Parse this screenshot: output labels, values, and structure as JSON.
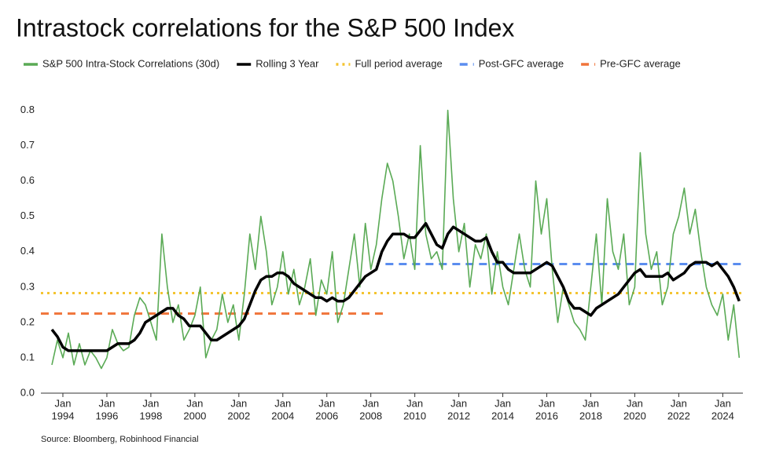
{
  "chart_data": {
    "type": "line",
    "title": "Intrastock correlations for the S&P 500 Index",
    "source": "Source: Bloomberg, Robinhood Financial",
    "x": [
      "1993-07",
      "1993-10",
      "1994-01",
      "1994-04",
      "1994-07",
      "1994-10",
      "1995-01",
      "1995-04",
      "1995-07",
      "1995-10",
      "1996-01",
      "1996-04",
      "1996-07",
      "1996-10",
      "1997-01",
      "1997-04",
      "1997-07",
      "1997-10",
      "1998-01",
      "1998-04",
      "1998-07",
      "1998-10",
      "1999-01",
      "1999-04",
      "1999-07",
      "1999-10",
      "2000-01",
      "2000-04",
      "2000-07",
      "2000-10",
      "2001-01",
      "2001-04",
      "2001-07",
      "2001-10",
      "2002-01",
      "2002-04",
      "2002-07",
      "2002-10",
      "2003-01",
      "2003-04",
      "2003-07",
      "2003-10",
      "2004-01",
      "2004-04",
      "2004-07",
      "2004-10",
      "2005-01",
      "2005-04",
      "2005-07",
      "2005-10",
      "2006-01",
      "2006-04",
      "2006-07",
      "2006-10",
      "2007-01",
      "2007-04",
      "2007-07",
      "2007-10",
      "2008-01",
      "2008-04",
      "2008-07",
      "2008-10",
      "2009-01",
      "2009-04",
      "2009-07",
      "2009-10",
      "2010-01",
      "2010-04",
      "2010-07",
      "2010-10",
      "2011-01",
      "2011-04",
      "2011-07",
      "2011-10",
      "2012-01",
      "2012-04",
      "2012-07",
      "2012-10",
      "2013-01",
      "2013-04",
      "2013-07",
      "2013-10",
      "2014-01",
      "2014-04",
      "2014-07",
      "2014-10",
      "2015-01",
      "2015-04",
      "2015-07",
      "2015-10",
      "2016-01",
      "2016-04",
      "2016-07",
      "2016-10",
      "2017-01",
      "2017-04",
      "2017-07",
      "2017-10",
      "2018-01",
      "2018-04",
      "2018-07",
      "2018-10",
      "2019-01",
      "2019-04",
      "2019-07",
      "2019-10",
      "2020-01",
      "2020-04",
      "2020-07",
      "2020-10",
      "2021-01",
      "2021-04",
      "2021-07",
      "2021-10",
      "2022-01",
      "2022-04",
      "2022-07",
      "2022-10",
      "2023-01",
      "2023-04",
      "2023-07",
      "2023-10",
      "2024-01",
      "2024-04",
      "2024-07",
      "2024-10"
    ],
    "series": [
      {
        "name": "S&P 500 Intra-Stock Correlations (30d)",
        "color": "#5aaa55",
        "width": 1.6,
        "values": [
          0.08,
          0.15,
          0.1,
          0.17,
          0.08,
          0.14,
          0.08,
          0.12,
          0.1,
          0.07,
          0.1,
          0.18,
          0.14,
          0.12,
          0.13,
          0.22,
          0.27,
          0.25,
          0.2,
          0.15,
          0.45,
          0.3,
          0.2,
          0.25,
          0.15,
          0.18,
          0.22,
          0.3,
          0.1,
          0.15,
          0.18,
          0.28,
          0.2,
          0.25,
          0.15,
          0.28,
          0.45,
          0.35,
          0.5,
          0.4,
          0.25,
          0.3,
          0.4,
          0.28,
          0.35,
          0.25,
          0.3,
          0.38,
          0.22,
          0.32,
          0.28,
          0.4,
          0.2,
          0.25,
          0.35,
          0.45,
          0.3,
          0.48,
          0.35,
          0.42,
          0.55,
          0.65,
          0.6,
          0.5,
          0.38,
          0.45,
          0.35,
          0.7,
          0.45,
          0.38,
          0.4,
          0.35,
          0.8,
          0.55,
          0.4,
          0.48,
          0.3,
          0.42,
          0.38,
          0.45,
          0.28,
          0.4,
          0.3,
          0.25,
          0.35,
          0.45,
          0.35,
          0.3,
          0.6,
          0.45,
          0.55,
          0.35,
          0.2,
          0.3,
          0.25,
          0.2,
          0.18,
          0.15,
          0.3,
          0.45,
          0.25,
          0.55,
          0.4,
          0.35,
          0.45,
          0.25,
          0.3,
          0.68,
          0.45,
          0.35,
          0.4,
          0.25,
          0.3,
          0.45,
          0.5,
          0.58,
          0.45,
          0.52,
          0.4,
          0.3,
          0.25,
          0.22,
          0.28,
          0.15,
          0.25,
          0.1
        ]
      },
      {
        "name": "Rolling 3 Year",
        "color": "#000000",
        "width": 3.5,
        "values": [
          0.18,
          0.16,
          0.13,
          0.12,
          0.12,
          0.12,
          0.12,
          0.12,
          0.12,
          0.12,
          0.12,
          0.13,
          0.14,
          0.14,
          0.14,
          0.15,
          0.17,
          0.2,
          0.21,
          0.22,
          0.23,
          0.24,
          0.24,
          0.22,
          0.21,
          0.19,
          0.19,
          0.19,
          0.17,
          0.15,
          0.15,
          0.16,
          0.17,
          0.18,
          0.19,
          0.21,
          0.25,
          0.29,
          0.32,
          0.33,
          0.33,
          0.34,
          0.34,
          0.33,
          0.31,
          0.3,
          0.29,
          0.28,
          0.27,
          0.27,
          0.26,
          0.27,
          0.26,
          0.26,
          0.27,
          0.29,
          0.31,
          0.33,
          0.34,
          0.35,
          0.4,
          0.43,
          0.45,
          0.45,
          0.45,
          0.44,
          0.44,
          0.46,
          0.48,
          0.45,
          0.42,
          0.41,
          0.45,
          0.47,
          0.46,
          0.45,
          0.44,
          0.43,
          0.43,
          0.44,
          0.4,
          0.37,
          0.37,
          0.35,
          0.34,
          0.34,
          0.34,
          0.34,
          0.35,
          0.36,
          0.37,
          0.36,
          0.33,
          0.3,
          0.26,
          0.24,
          0.24,
          0.23,
          0.22,
          0.24,
          0.25,
          0.26,
          0.27,
          0.28,
          0.3,
          0.32,
          0.34,
          0.35,
          0.33,
          0.33,
          0.33,
          0.33,
          0.34,
          0.32,
          0.33,
          0.34,
          0.36,
          0.37,
          0.37,
          0.37,
          0.36,
          0.37,
          0.35,
          0.33,
          0.3,
          0.26
        ]
      }
    ],
    "reference_lines": [
      {
        "name": "Full period average",
        "color": "#f4c430",
        "style": "dotted",
        "value": 0.283,
        "x_range": [
          "1993-01",
          "2024-12"
        ]
      },
      {
        "name": "Post-GFC average",
        "color": "#5b8def",
        "style": "dashed",
        "value": 0.365,
        "x_range": [
          "2008-09",
          "2024-12"
        ]
      },
      {
        "name": "Pre-GFC average",
        "color": "#f0743a",
        "style": "dashed",
        "value": 0.225,
        "x_range": [
          "1993-01",
          "2008-09"
        ]
      }
    ],
    "xlim": [
      "1993-01",
      "2024-12"
    ],
    "xticks": [
      {
        "value": "1994-01",
        "label": [
          "Jan",
          "1994"
        ]
      },
      {
        "value": "1996-01",
        "label": [
          "Jan",
          "1996"
        ]
      },
      {
        "value": "1998-01",
        "label": [
          "Jan",
          "1998"
        ]
      },
      {
        "value": "2000-01",
        "label": [
          "Jan",
          "2000"
        ]
      },
      {
        "value": "2002-01",
        "label": [
          "Jan",
          "2002"
        ]
      },
      {
        "value": "2004-01",
        "label": [
          "Jan",
          "2004"
        ]
      },
      {
        "value": "2006-01",
        "label": [
          "Jan",
          "2006"
        ]
      },
      {
        "value": "2008-01",
        "label": [
          "Jan",
          "2008"
        ]
      },
      {
        "value": "2010-01",
        "label": [
          "Jan",
          "2010"
        ]
      },
      {
        "value": "2012-01",
        "label": [
          "Jan",
          "2012"
        ]
      },
      {
        "value": "2014-01",
        "label": [
          "Jan",
          "2014"
        ]
      },
      {
        "value": "2016-01",
        "label": [
          "Jan",
          "2016"
        ]
      },
      {
        "value": "2018-01",
        "label": [
          "Jan",
          "2018"
        ]
      },
      {
        "value": "2020-01",
        "label": [
          "Jan",
          "2020"
        ]
      },
      {
        "value": "2022-01",
        "label": [
          "Jan",
          "2022"
        ]
      },
      {
        "value": "2024-01",
        "label": [
          "Jan",
          "2024"
        ]
      }
    ],
    "ylim": [
      0,
      0.85
    ],
    "yticks": [
      {
        "value": 0,
        "label": "0.0"
      },
      0.1,
      0.2,
      0.3,
      0.4,
      0.5,
      0.6,
      0.7,
      0.8
    ],
    "grid": false
  }
}
